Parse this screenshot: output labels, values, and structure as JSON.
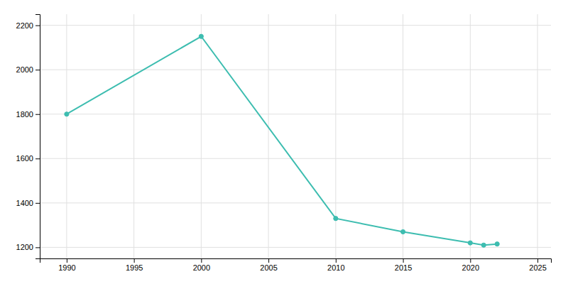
{
  "chart_data": {
    "type": "line",
    "x": [
      1990,
      2000,
      2010,
      2015,
      2020,
      2021,
      2022
    ],
    "values": [
      1800,
      2150,
      1330,
      1270,
      1220,
      1210,
      1215
    ],
    "color": "#3dbdb0",
    "marker": "circle",
    "xlim": [
      1988,
      2026
    ],
    "ylim": [
      1150,
      2250
    ],
    "xticks": [
      1990,
      1995,
      2000,
      2005,
      2010,
      2015,
      2020,
      2025
    ],
    "yticks": [
      1200,
      1400,
      1600,
      1800,
      2000,
      2200
    ],
    "grid": true
  }
}
